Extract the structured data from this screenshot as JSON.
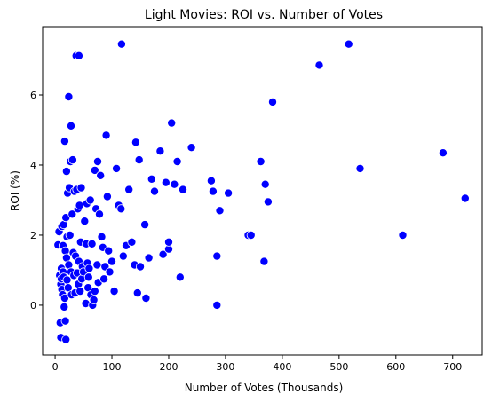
{
  "chart_data": {
    "type": "scatter",
    "title": "Light Movies: ROI vs. Number of Votes",
    "xlabel": "Number of Votes (Thousands)",
    "ylabel": "ROI (%)",
    "xlim": [
      -22,
      752
    ],
    "ylim": [
      -1.42,
      7.95
    ],
    "x_ticks": [
      0,
      100,
      200,
      300,
      400,
      500,
      600,
      700
    ],
    "y_ticks": [
      0,
      2,
      4,
      6
    ],
    "grid": false,
    "legend": "none",
    "marker_color": "#0000ff",
    "marker_edge_color": "#ffffff",
    "x": [
      5,
      7,
      8,
      9,
      10,
      10,
      11,
      11,
      12,
      12,
      13,
      14,
      14,
      15,
      15,
      16,
      17,
      17,
      18,
      18,
      19,
      19,
      20,
      20,
      21,
      21,
      22,
      23,
      24,
      24,
      25,
      26,
      27,
      28,
      28,
      29,
      30,
      31,
      32,
      33,
      34,
      35,
      36,
      37,
      38,
      39,
      40,
      41,
      42,
      43,
      44,
      45,
      46,
      47,
      48,
      50,
      52,
      54,
      55,
      56,
      57,
      58,
      59,
      60,
      62,
      63,
      65,
      66,
      68,
      70,
      70,
      72,
      74,
      75,
      76,
      78,
      80,
      82,
      84,
      86,
      88,
      90,
      92,
      94,
      96,
      100,
      104,
      108,
      112,
      116,
      120,
      125,
      130,
      135,
      140,
      142,
      145,
      148,
      150,
      158,
      160,
      165,
      170,
      175,
      185,
      190,
      195,
      200,
      200,
      205,
      210,
      215,
      220,
      225,
      240,
      275,
      278,
      285,
      285,
      290,
      305,
      340,
      345,
      362,
      368,
      370,
      375,
      383,
      465,
      517,
      537,
      612,
      683,
      722,
      117,
      42
    ],
    "y": [
      1.72,
      2.1,
      0.85,
      -0.5,
      0.6,
      -0.92,
      0.75,
      1.05,
      0.45,
      2.25,
      0.3,
      1.7,
      0.95,
      2.3,
      0.8,
      -0.05,
      0.2,
      4.68,
      -0.45,
      1.55,
      -0.98,
      2.5,
      1.35,
      3.82,
      0.72,
      1.95,
      3.2,
      0.5,
      1.15,
      5.95,
      3.35,
      2.0,
      4.1,
      0.95,
      5.12,
      0.3,
      2.6,
      4.15,
      1.5,
      0.85,
      3.25,
      0.35,
      1.4,
      7.12,
      3.3,
      0.92,
      2.75,
      0.6,
      1.25,
      2.85,
      0.4,
      1.8,
      3.35,
      0.75,
      1.1,
      0.95,
      2.4,
      0.05,
      1.75,
      2.9,
      1.2,
      0.5,
      0.8,
      1.05,
      3.0,
      0.3,
      1.75,
      0.0,
      0.15,
      3.85,
      0.4,
      2.75,
      1.15,
      4.1,
      0.65,
      2.6,
      3.7,
      1.95,
      1.65,
      0.75,
      1.1,
      4.85,
      3.1,
      1.55,
      0.95,
      1.25,
      0.4,
      3.9,
      2.85,
      2.75,
      1.4,
      1.7,
      3.3,
      1.8,
      1.15,
      4.65,
      0.35,
      4.15,
      1.1,
      2.3,
      0.2,
      1.35,
      3.6,
      3.25,
      4.4,
      1.45,
      3.5,
      1.6,
      1.8,
      5.2,
      3.45,
      4.1,
      0.8,
      3.3,
      4.5,
      3.55,
      3.25,
      1.4,
      0.0,
      2.7,
      3.2,
      2.0,
      2.0,
      4.1,
      1.25,
      3.45,
      2.95,
      5.8,
      6.85,
      7.45,
      3.9,
      2.0,
      4.35,
      3.05,
      7.45,
      7.12
    ]
  }
}
